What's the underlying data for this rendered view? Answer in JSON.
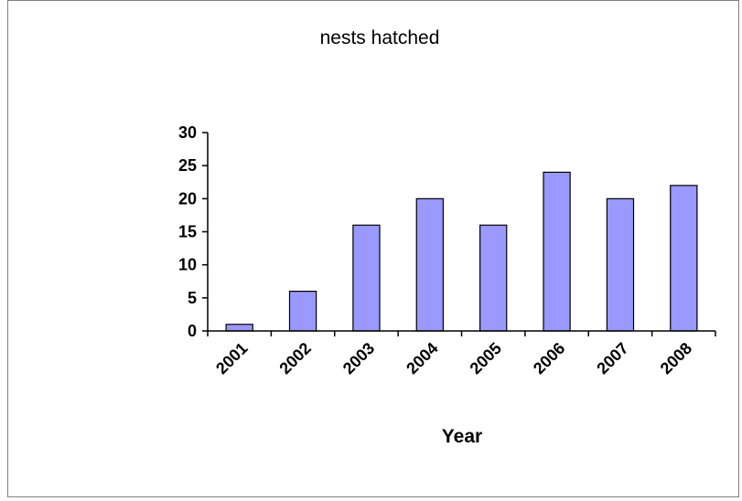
{
  "chart_data": {
    "type": "bar",
    "title": "nests hatched",
    "xlabel": "Year",
    "ylabel": "",
    "categories": [
      "2001",
      "2002",
      "2003",
      "2004",
      "2005",
      "2006",
      "2007",
      "2008"
    ],
    "values": [
      1,
      6,
      16,
      20,
      16,
      24,
      20,
      22
    ],
    "ylim": [
      0,
      30
    ],
    "yticks": [
      "0",
      "5",
      "10",
      "15",
      "20",
      "25",
      "30"
    ],
    "grid": false,
    "legend": "none",
    "bar_color": "#9999ff",
    "bar_edge_color": "#000000"
  }
}
